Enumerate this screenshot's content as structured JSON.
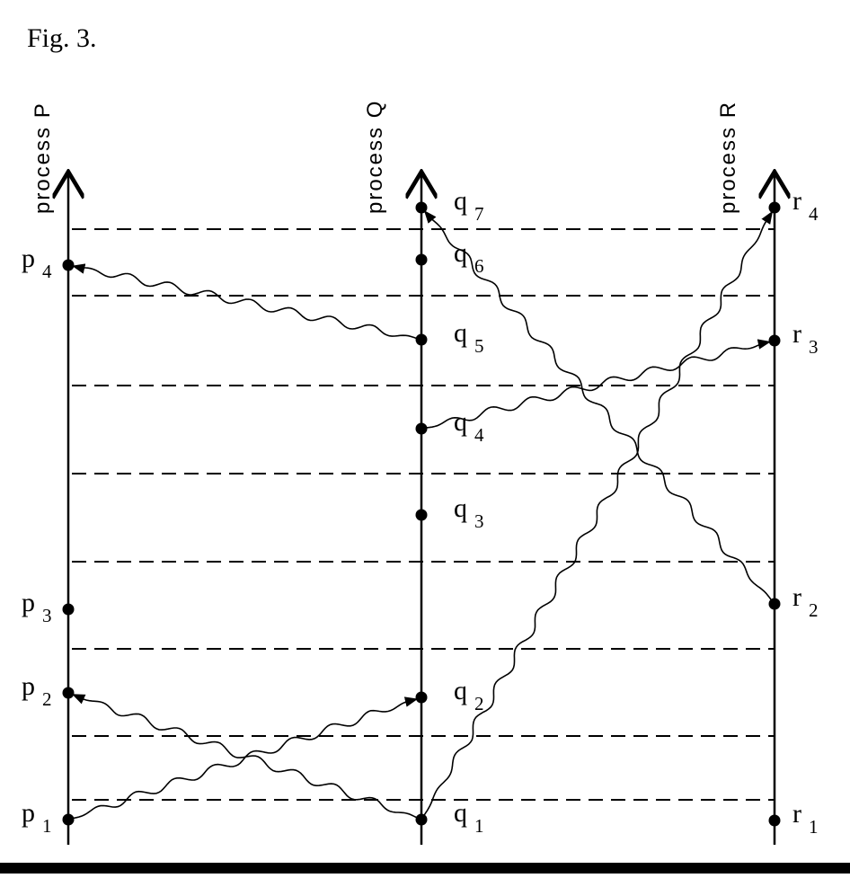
{
  "figure": {
    "title": "Fig. 3.",
    "processes": [
      {
        "id": "P",
        "label": "process  P"
      },
      {
        "id": "Q",
        "label": "process  Q"
      },
      {
        "id": "R",
        "label": "process  R"
      }
    ],
    "events": [
      {
        "id": "p1",
        "process": "P",
        "main": "p",
        "sub": "1"
      },
      {
        "id": "p2",
        "process": "P",
        "main": "p",
        "sub": "2"
      },
      {
        "id": "p3",
        "process": "P",
        "main": "p",
        "sub": "3"
      },
      {
        "id": "p4",
        "process": "P",
        "main": "p",
        "sub": "4"
      },
      {
        "id": "q1",
        "process": "Q",
        "main": "q",
        "sub": "1"
      },
      {
        "id": "q2",
        "process": "Q",
        "main": "q",
        "sub": "2"
      },
      {
        "id": "q3",
        "process": "Q",
        "main": "q",
        "sub": "3"
      },
      {
        "id": "q4",
        "process": "Q",
        "main": "q",
        "sub": "4"
      },
      {
        "id": "q5",
        "process": "Q",
        "main": "q",
        "sub": "5"
      },
      {
        "id": "q6",
        "process": "Q",
        "main": "q",
        "sub": "6"
      },
      {
        "id": "q7",
        "process": "Q",
        "main": "q",
        "sub": "7"
      },
      {
        "id": "r1",
        "process": "R",
        "main": "r",
        "sub": "1"
      },
      {
        "id": "r2",
        "process": "R",
        "main": "r",
        "sub": "2"
      },
      {
        "id": "r3",
        "process": "R",
        "main": "r",
        "sub": "3"
      },
      {
        "id": "r4",
        "process": "R",
        "main": "r",
        "sub": "4"
      }
    ],
    "messages": [
      {
        "from": "p1",
        "to": "q2"
      },
      {
        "from": "q1",
        "to": "p2"
      },
      {
        "from": "q1",
        "to": "r4"
      },
      {
        "from": "q4",
        "to": "r3"
      },
      {
        "from": "q5",
        "to": "p4"
      },
      {
        "from": "r2",
        "to": "q7"
      }
    ],
    "tick_lines": 8
  }
}
